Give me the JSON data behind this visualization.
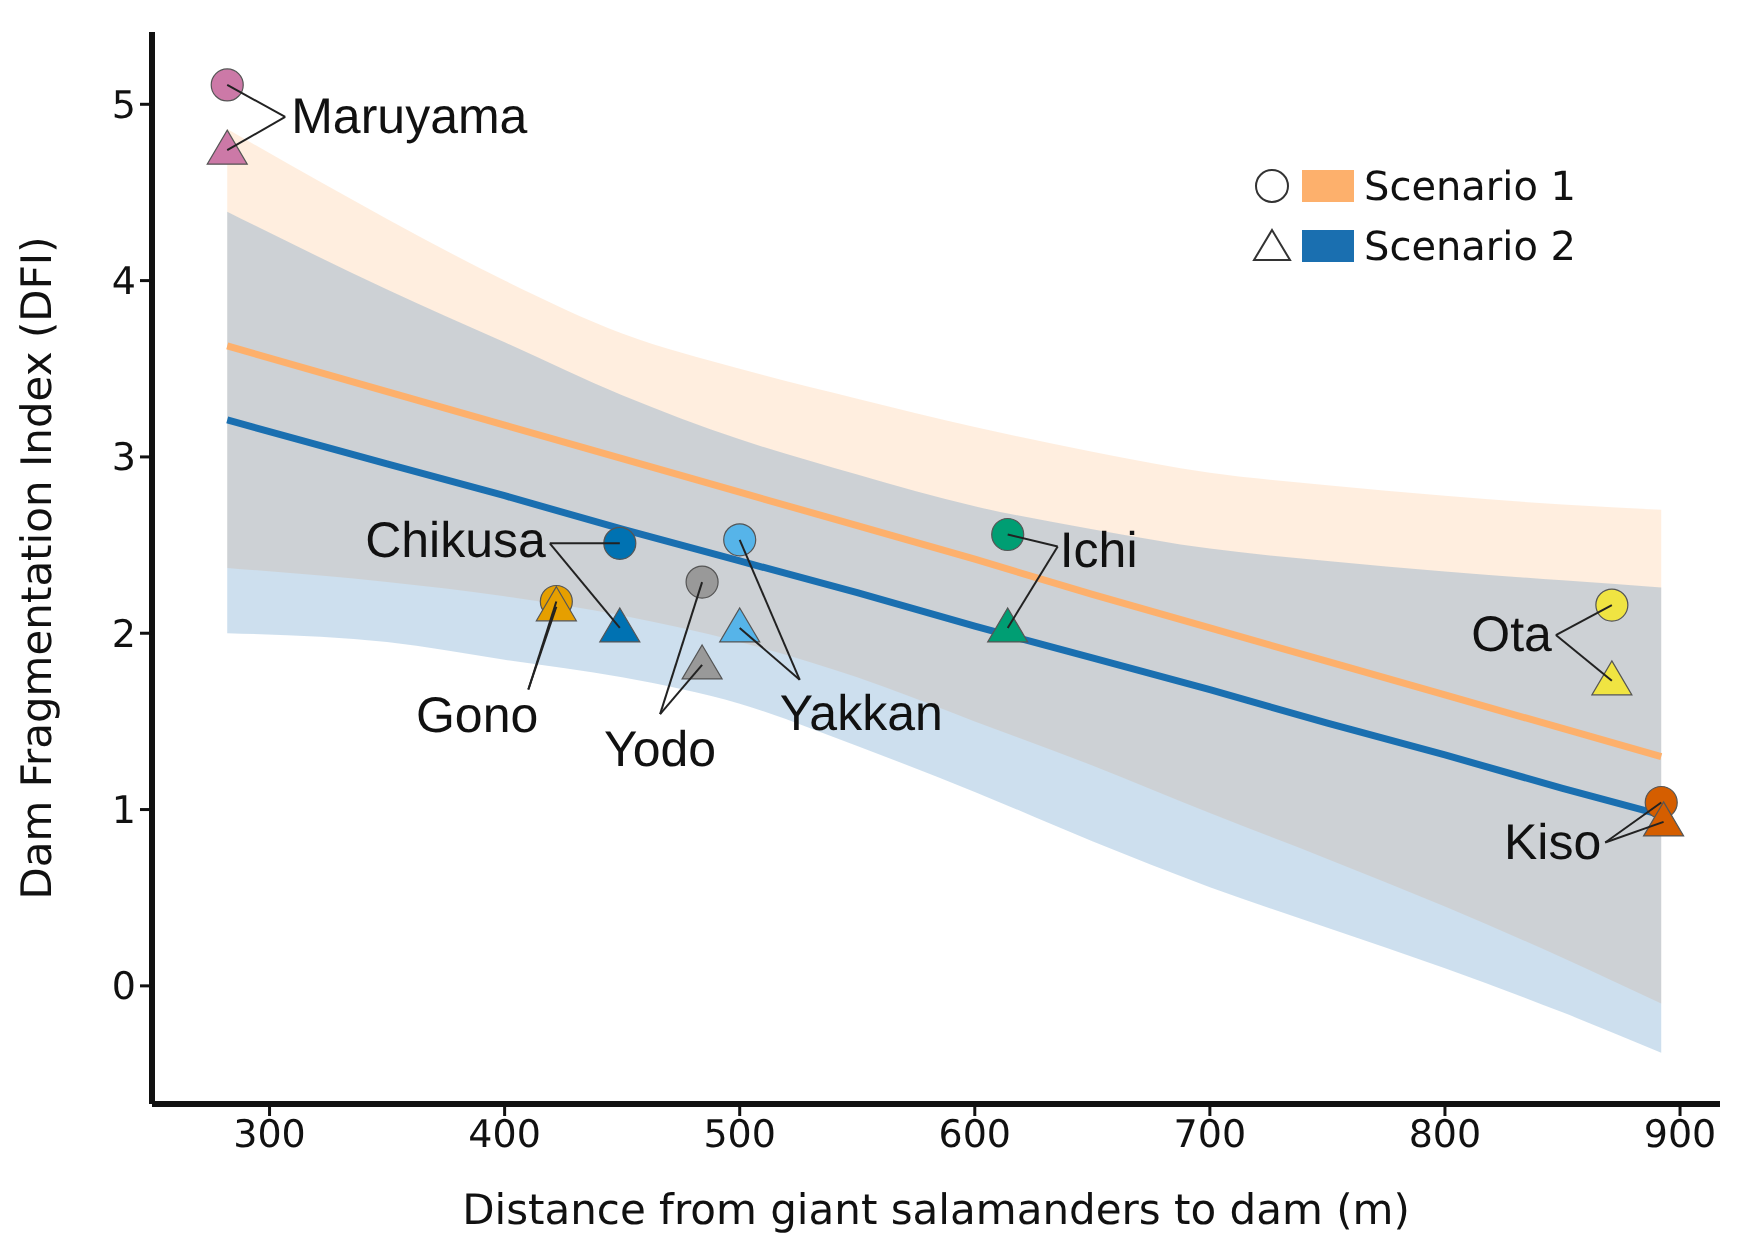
{
  "chart_data": {
    "type": "scatter",
    "xlabel": "Distance from giant salamanders to dam (m)",
    "ylabel": "Dam Fragmentation Index (DFI)",
    "xlim": [
      250,
      917
    ],
    "ylim": [
      -0.67,
      5.41
    ],
    "xticks": [
      300,
      400,
      500,
      600,
      700,
      800,
      900
    ],
    "yticks": [
      0,
      1,
      2,
      3,
      4,
      5
    ],
    "grid": false,
    "legend": "top right",
    "series": [
      {
        "name": "Scenario 1",
        "type": "line",
        "color": "#fdb06c",
        "x": [
          282,
          350,
          400,
          450,
          500,
          550,
          600,
          650,
          700,
          750,
          800,
          850,
          892
        ],
        "values": [
          3.63,
          3.37,
          3.18,
          2.99,
          2.8,
          2.61,
          2.42,
          2.22,
          2.03,
          1.84,
          1.65,
          1.46,
          1.3
        ],
        "lower": [
          2.37,
          2.29,
          2.21,
          2.1,
          1.95,
          1.75,
          1.5,
          1.25,
          0.98,
          0.72,
          0.45,
          0.16,
          -0.1
        ],
        "upper": [
          4.86,
          4.35,
          4.0,
          3.7,
          3.5,
          3.33,
          3.17,
          3.03,
          2.91,
          2.84,
          2.78,
          2.73,
          2.7
        ]
      },
      {
        "name": "Scenario 2",
        "type": "line",
        "color": "#1a6fb0",
        "x": [
          282,
          350,
          400,
          450,
          500,
          550,
          600,
          650,
          700,
          750,
          800,
          850,
          892
        ],
        "values": [
          3.21,
          2.96,
          2.78,
          2.59,
          2.41,
          2.23,
          2.04,
          1.86,
          1.68,
          1.49,
          1.31,
          1.12,
          0.97
        ],
        "lower": [
          2.0,
          1.95,
          1.85,
          1.75,
          1.6,
          1.36,
          1.1,
          0.82,
          0.56,
          0.33,
          0.1,
          -0.15,
          -0.38
        ],
        "upper": [
          4.39,
          3.95,
          3.65,
          3.35,
          3.1,
          2.9,
          2.72,
          2.59,
          2.48,
          2.41,
          2.35,
          2.3,
          2.26
        ]
      },
      {
        "marker": "circle",
        "x": [
          282,
          422,
          449,
          484,
          500,
          614,
          871,
          892
        ],
        "values": [
          5.11,
          2.18,
          2.51,
          2.29,
          2.53,
          2.56,
          2.16,
          1.04
        ],
        "colors": [
          "#cc79a7",
          "#e69f00",
          "#0072b2",
          "#999999",
          "#56b4e9",
          "#009e73",
          "#f0e442",
          "#d55e00"
        ]
      },
      {
        "marker": "triangle",
        "x": [
          282,
          422,
          449,
          484,
          500,
          614,
          871,
          893
        ],
        "values": [
          4.74,
          2.15,
          2.03,
          1.82,
          2.03,
          2.03,
          1.73,
          0.93
        ],
        "colors": [
          "#cc79a7",
          "#e69f00",
          "#0072b2",
          "#999999",
          "#56b4e9",
          "#009e73",
          "#f0e442",
          "#d55e00"
        ]
      }
    ],
    "annotations": [
      {
        "text": "Maruyama",
        "x": 282,
        "y": 5.11
      },
      {
        "text": "Gono",
        "x": 422,
        "y": 2.18
      },
      {
        "text": "Chikusa",
        "x": 449,
        "y": 2.51
      },
      {
        "text": "Yodo",
        "x": 484,
        "y": 2.29
      },
      {
        "text": "Yakkan",
        "x": 500,
        "y": 2.53
      },
      {
        "text": "Ichi",
        "x": 614,
        "y": 2.56
      },
      {
        "text": "Ota",
        "x": 871,
        "y": 2.16
      },
      {
        "text": "Kiso",
        "x": 892,
        "y": 1.04
      }
    ]
  }
}
